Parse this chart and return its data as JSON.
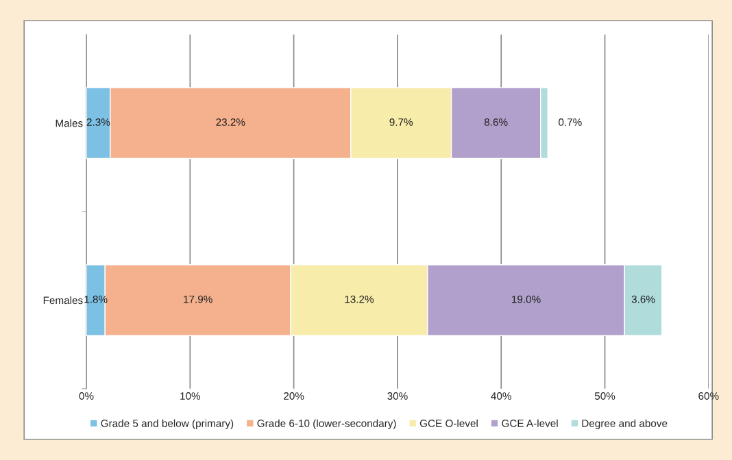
{
  "chart_data": {
    "type": "bar",
    "orientation": "horizontal",
    "stacked": true,
    "categories": [
      "Males",
      "Females"
    ],
    "series": [
      {
        "name": "Grade 5 and below (primary)",
        "color": "#7cc0e4",
        "values": [
          2.3,
          1.8
        ],
        "value_labels": [
          "2.3%",
          "1.8%"
        ]
      },
      {
        "name": "Grade 6-10 (lower-secondary)",
        "color": "#f5b08e",
        "values": [
          23.2,
          17.9
        ],
        "value_labels": [
          "23.2%",
          "17.9%"
        ]
      },
      {
        "name": "GCE O-level",
        "color": "#f7ecaa",
        "values": [
          9.7,
          13.2
        ],
        "value_labels": [
          "9.7%",
          "13.2%"
        ]
      },
      {
        "name": "GCE A-level",
        "color": "#b0a0cb",
        "values": [
          8.6,
          19.0
        ],
        "value_labels": [
          "8.6%",
          "19.0%"
        ]
      },
      {
        "name": "Degree and above",
        "color": "#b0dcdc",
        "values": [
          0.7,
          3.6
        ],
        "value_labels": [
          "0.7%",
          "3.6%"
        ]
      }
    ],
    "xlim": [
      0,
      60
    ],
    "xticks": [
      {
        "value": 0,
        "label": "0%"
      },
      {
        "value": 10,
        "label": "10%"
      },
      {
        "value": 20,
        "label": "20%"
      },
      {
        "value": 30,
        "label": "30%"
      },
      {
        "value": 40,
        "label": "40%"
      },
      {
        "value": 50,
        "label": "50%"
      },
      {
        "value": 60,
        "label": "60%"
      }
    ],
    "grid": "x",
    "legend": "bottom"
  }
}
